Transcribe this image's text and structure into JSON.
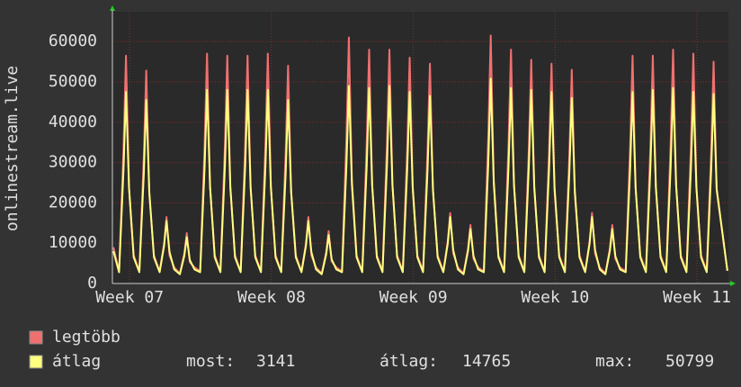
{
  "chart_data": {
    "type": "line",
    "y_label": "onlinestream.live",
    "xlim": [
      0,
      30.4
    ],
    "xticks": [
      {
        "value": 0.85,
        "label": "Week 07"
      },
      {
        "value": 7.85,
        "label": "Week 08"
      },
      {
        "value": 14.85,
        "label": "Week 09"
      },
      {
        "value": 21.85,
        "label": "Week 10"
      },
      {
        "value": 28.85,
        "label": "Week 11"
      }
    ],
    "ylim": [
      0,
      67400
    ],
    "yticks": [
      0,
      10000,
      20000,
      30000,
      40000,
      50000,
      60000
    ],
    "grid": true,
    "x": [
      0.05,
      0.33,
      0.55,
      0.67,
      0.82,
      1.05,
      1.33,
      1.55,
      1.67,
      1.82,
      2.05,
      2.33,
      2.55,
      2.67,
      2.82,
      3.05,
      3.33,
      3.55,
      3.67,
      3.82,
      4.05,
      4.33,
      4.55,
      4.67,
      4.82,
      5.05,
      5.33,
      5.55,
      5.67,
      5.82,
      6.05,
      6.33,
      6.55,
      6.67,
      6.82,
      7.05,
      7.33,
      7.55,
      7.67,
      7.82,
      8.05,
      8.33,
      8.55,
      8.67,
      8.82,
      9.05,
      9.33,
      9.55,
      9.67,
      9.82,
      10.05,
      10.33,
      10.55,
      10.67,
      10.82,
      11.05,
      11.33,
      11.55,
      11.67,
      11.82,
      12.05,
      12.33,
      12.55,
      12.67,
      12.82,
      13.05,
      13.33,
      13.55,
      13.67,
      13.82,
      14.05,
      14.33,
      14.55,
      14.67,
      14.82,
      15.05,
      15.33,
      15.55,
      15.67,
      15.82,
      16.05,
      16.33,
      16.55,
      16.67,
      16.82,
      17.05,
      17.33,
      17.55,
      17.67,
      17.82,
      18.05,
      18.33,
      18.55,
      18.67,
      18.82,
      19.05,
      19.33,
      19.55,
      19.67,
      19.82,
      20.05,
      20.33,
      20.55,
      20.67,
      20.82,
      21.05,
      21.33,
      21.55,
      21.67,
      21.82,
      22.05,
      22.33,
      22.55,
      22.67,
      22.82,
      23.05,
      23.33,
      23.55,
      23.67,
      23.82,
      24.05,
      24.33,
      24.55,
      24.67,
      24.82,
      25.05,
      25.33,
      25.55,
      25.67,
      25.82,
      26.05,
      26.33,
      26.55,
      26.67,
      26.82,
      27.05,
      27.33,
      27.55,
      27.67,
      27.82,
      28.05,
      28.33,
      28.55,
      28.67,
      28.82,
      29.05,
      29.33,
      29.55,
      29.67,
      29.82,
      30.35
    ],
    "series": [
      {
        "name": "legtöbb",
        "color": "#f07070",
        "values": [
          9000,
          3000,
          33900,
          56500,
          23700,
          7000,
          3000,
          31700,
          52800,
          22200,
          7000,
          3000,
          9900,
          16500,
          6900,
          4000,
          2500,
          7500,
          12500,
          5300,
          4000,
          3000,
          34200,
          57000,
          23900,
          7000,
          3000,
          33900,
          56500,
          23700,
          7000,
          3000,
          33900,
          56500,
          23700,
          7000,
          3000,
          34200,
          57000,
          23900,
          7000,
          3000,
          32400,
          54000,
          22700,
          7000,
          3000,
          9900,
          16500,
          6900,
          4000,
          2500,
          7800,
          13000,
          5500,
          4000,
          3000,
          36600,
          61000,
          25600,
          7000,
          3000,
          34800,
          58000,
          24400,
          7000,
          3000,
          34800,
          58000,
          24400,
          7000,
          3000,
          33600,
          56000,
          23500,
          7000,
          3000,
          32700,
          54500,
          22900,
          7000,
          3000,
          10500,
          17500,
          7400,
          4000,
          2500,
          8700,
          14500,
          6100,
          4000,
          3000,
          36900,
          61500,
          25800,
          7000,
          3000,
          34800,
          58000,
          24400,
          7000,
          3000,
          33300,
          55500,
          23300,
          7000,
          3000,
          32700,
          54500,
          22900,
          7000,
          3000,
          31800,
          53000,
          22300,
          7000,
          3000,
          10500,
          17500,
          7400,
          4000,
          2500,
          8700,
          14500,
          6100,
          4000,
          3000,
          33900,
          56500,
          23700,
          7000,
          3000,
          33900,
          56500,
          23700,
          7000,
          3000,
          34800,
          58000,
          24400,
          7000,
          3000,
          34200,
          57000,
          23900,
          7000,
          3000,
          33000,
          55000,
          23100,
          3141
        ]
      },
      {
        "name": "átlag",
        "color": "#ffff80",
        "values": [
          8000,
          2800,
          28500,
          47500,
          23800,
          6500,
          2800,
          27300,
          45500,
          22800,
          6500,
          2800,
          9300,
          15500,
          7800,
          3500,
          2300,
          6900,
          11500,
          5800,
          3500,
          2800,
          28800,
          48000,
          24000,
          6500,
          2800,
          28800,
          48000,
          24000,
          6500,
          2800,
          28800,
          48000,
          24000,
          6500,
          2800,
          28800,
          48000,
          24000,
          6500,
          2800,
          27300,
          45500,
          22800,
          6500,
          2800,
          9300,
          15500,
          7800,
          3500,
          2300,
          7200,
          12000,
          6000,
          3500,
          2800,
          29400,
          49000,
          24500,
          6500,
          2800,
          29100,
          48500,
          24300,
          6500,
          2800,
          29400,
          49000,
          24500,
          6500,
          2800,
          28500,
          47500,
          23800,
          6500,
          2800,
          27900,
          46500,
          23300,
          6500,
          2800,
          9900,
          16500,
          8300,
          3500,
          2300,
          8100,
          13500,
          6800,
          3500,
          2800,
          30000,
          50799,
          25000,
          6500,
          2800,
          29100,
          48500,
          24300,
          6500,
          2800,
          28800,
          48000,
          24000,
          6500,
          2800,
          28500,
          47500,
          23800,
          6500,
          2800,
          27600,
          46000,
          23000,
          6500,
          2800,
          9900,
          16500,
          8300,
          3500,
          2300,
          8100,
          13500,
          6800,
          3500,
          2800,
          28500,
          47500,
          23800,
          6500,
          2800,
          28800,
          48000,
          24000,
          6500,
          2800,
          29100,
          48500,
          24300,
          6500,
          2800,
          28500,
          47500,
          23800,
          6500,
          2800,
          28200,
          47000,
          23500,
          3141
        ]
      }
    ],
    "stats": [
      {
        "label": "most:",
        "value": 3141
      },
      {
        "label": "átlag:",
        "value": 14765
      },
      {
        "label": "max:",
        "value": 50799
      }
    ]
  }
}
